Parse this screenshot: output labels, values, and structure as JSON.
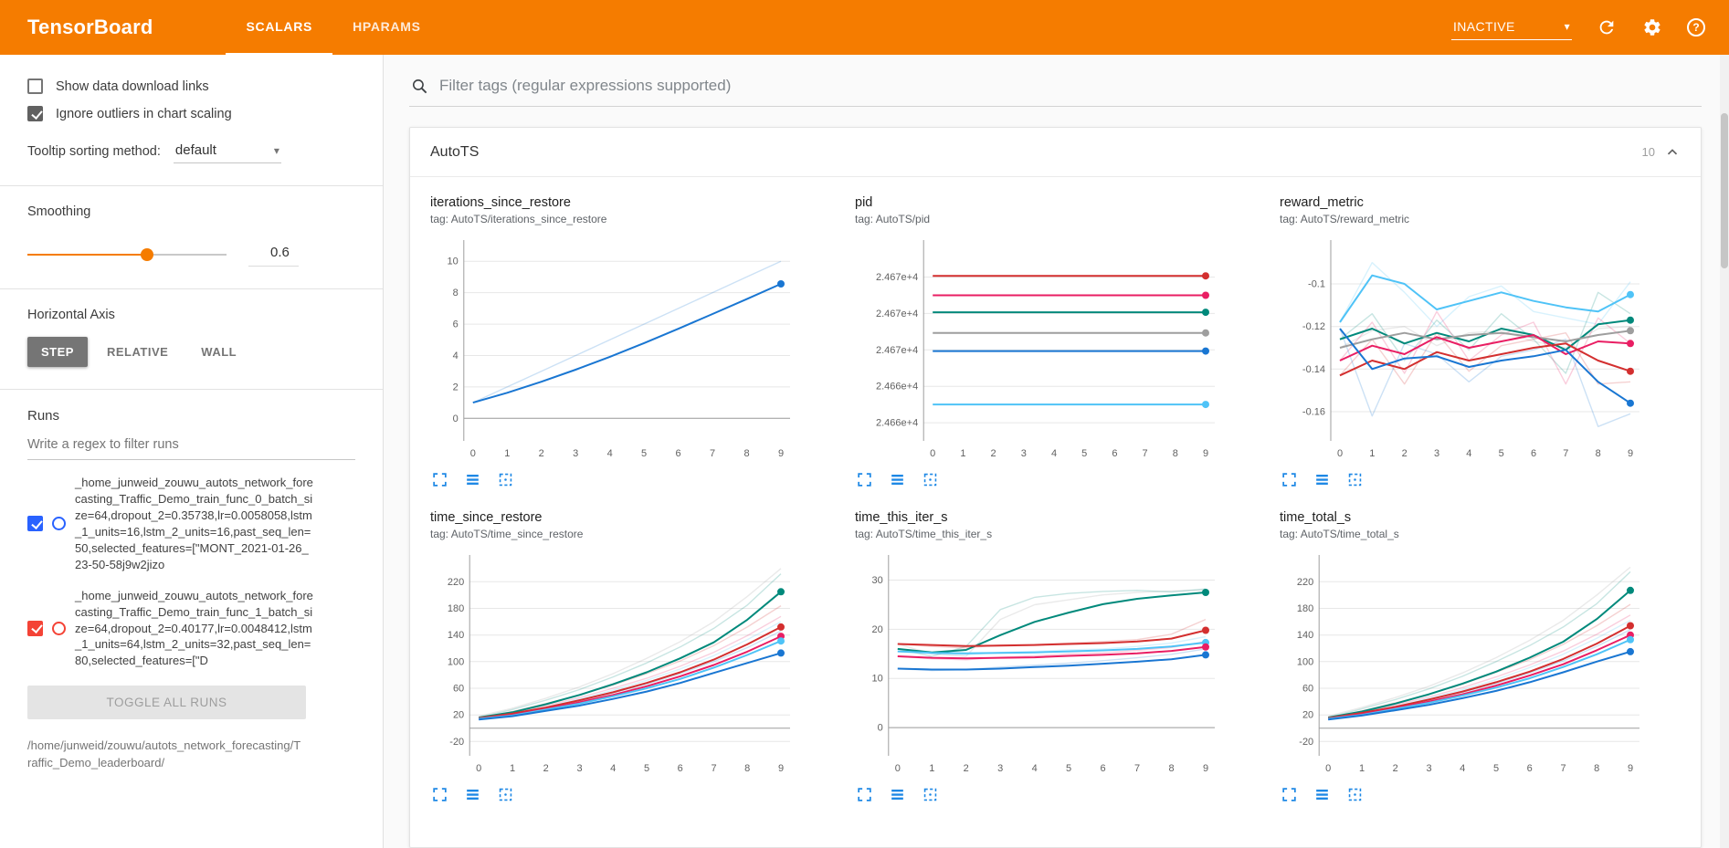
{
  "header": {
    "title": "TensorBoard",
    "tabs": [
      {
        "label": "SCALARS",
        "active": true
      },
      {
        "label": "HPARAMS",
        "active": false
      }
    ],
    "status": "INACTIVE"
  },
  "icons": {
    "caret": "▾",
    "help": "?",
    "chevron_up": "^"
  },
  "sidebar": {
    "checkboxes": [
      {
        "label": "Show data download links",
        "checked": false
      },
      {
        "label": "Ignore outliers in chart scaling",
        "checked": true
      }
    ],
    "tooltip_sort": {
      "label": "Tooltip sorting method:",
      "value": "default"
    },
    "smoothing": {
      "label": "Smoothing",
      "value": "0.6",
      "percent": 60
    },
    "axis": {
      "label": "Horizontal Axis",
      "options": [
        {
          "label": "STEP",
          "active": true
        },
        {
          "label": "RELATIVE",
          "active": false
        },
        {
          "label": "WALL",
          "active": false
        }
      ]
    },
    "runs": {
      "label": "Runs",
      "filter_placeholder": "Write a regex to filter runs",
      "items": [
        {
          "name": "_home_junweid_zouwu_autots_network_forecasting_Traffic_Demo_train_func_0_batch_size=64,dropout_2=0.35738,lr=0.0058058,lstm_1_units=16,lstm_2_units=16,past_seq_len=50,selected_features=[\"MONT_2021-01-26_23-50-58j9w2jizo",
          "checked": true,
          "color": "#2962ff"
        },
        {
          "name": "_home_junweid_zouwu_autots_network_forecasting_Traffic_Demo_train_func_1_batch_size=64,dropout_2=0.40177,lr=0.0048412,lstm_1_units=64,lstm_2_units=32,past_seq_len=80,selected_features=[\"D",
          "checked": true,
          "color": "#f44336"
        }
      ],
      "toggle_all_label": "TOGGLE ALL RUNS",
      "path": "/home/junweid/zouwu/autots_network_forecasting/Traffic_Demo_leaderboard/"
    }
  },
  "main": {
    "filter_placeholder": "Filter tags (regular expressions supported)",
    "section": {
      "title": "AutoTS",
      "count": "10"
    }
  },
  "chart_data": [
    {
      "type": "line",
      "title": "iterations_since_restore",
      "tag": "tag: AutoTS/iterations_since_restore",
      "x": [
        0,
        1,
        2,
        3,
        4,
        5,
        6,
        7,
        8,
        9
      ],
      "ylim": [
        -1.2,
        11
      ],
      "yticks": [
        0,
        2,
        4,
        6,
        8,
        10
      ],
      "ytick_labels": [
        "0",
        "2",
        "4",
        "6",
        "8",
        "10"
      ],
      "zeroline": true,
      "series": [
        {
          "color": "#1976d2",
          "faded": true,
          "values": [
            1,
            2,
            3,
            4,
            5,
            6,
            7,
            8,
            9,
            10
          ]
        },
        {
          "color": "#1976d2",
          "values": [
            1,
            1.63,
            2.33,
            3.1,
            3.92,
            4.79,
            5.7,
            6.64,
            7.59,
            8.56
          ]
        }
      ]
    },
    {
      "type": "line",
      "title": "pid",
      "tag": "tag: AutoTS/pid",
      "x": [
        0,
        1,
        2,
        3,
        4,
        5,
        6,
        7,
        8,
        9
      ],
      "ylim": [
        24658.8,
        24674.6
      ],
      "yticks": [
        24660,
        24663,
        24666,
        24669,
        24672
      ],
      "ytick_labels": [
        "2.466e+4",
        "2.466e+4",
        "2.467e+4",
        "2.467e+4",
        "2.467e+4"
      ],
      "zeroline": false,
      "series": [
        {
          "color": "#d32f2f",
          "const": 24672.1
        },
        {
          "color": "#e91e63",
          "const": 24670.5
        },
        {
          "color": "#00897b",
          "const": 24669.1
        },
        {
          "color": "#9e9e9e",
          "const": 24667.4
        },
        {
          "color": "#1976d2",
          "const": 24665.9
        },
        {
          "color": "#4fc3f7",
          "const": 24661.5
        }
      ]
    },
    {
      "type": "line",
      "title": "reward_metric",
      "tag": "tag: AutoTS/reward_metric",
      "x": [
        0,
        1,
        2,
        3,
        4,
        5,
        6,
        7,
        8,
        9
      ],
      "ylim": [
        -0.172,
        -0.082
      ],
      "yticks": [
        -0.16,
        -0.14,
        -0.12,
        -0.1
      ],
      "ytick_labels": [
        "-0.16",
        "-0.14",
        "-0.12",
        "-0.1"
      ],
      "zeroline": false,
      "series": [
        {
          "color": "#4fc3f7",
          "faded": true,
          "values": [
            -0.118,
            -0.09,
            -0.104,
            -0.12,
            -0.106,
            -0.101,
            -0.113,
            -0.116,
            -0.119,
            -0.099
          ]
        },
        {
          "color": "#00897b",
          "faded": true,
          "values": [
            -0.126,
            -0.114,
            -0.136,
            -0.117,
            -0.131,
            -0.114,
            -0.126,
            -0.142,
            -0.104,
            -0.114
          ]
        },
        {
          "color": "#9e9e9e",
          "faded": true,
          "values": [
            -0.13,
            -0.122,
            -0.12,
            -0.129,
            -0.123,
            -0.122,
            -0.127,
            -0.13,
            -0.121,
            -0.12
          ]
        },
        {
          "color": "#e91e63",
          "faded": true,
          "values": [
            -0.136,
            -0.118,
            -0.142,
            -0.113,
            -0.136,
            -0.124,
            -0.118,
            -0.147,
            -0.116,
            -0.128
          ]
        },
        {
          "color": "#d32f2f",
          "faded": true,
          "values": [
            -0.143,
            -0.126,
            -0.147,
            -0.123,
            -0.141,
            -0.129,
            -0.126,
            -0.123,
            -0.147,
            -0.146
          ]
        },
        {
          "color": "#1976d2",
          "faded": true,
          "values": [
            -0.121,
            -0.162,
            -0.128,
            -0.133,
            -0.146,
            -0.134,
            -0.131,
            -0.126,
            -0.167,
            -0.161
          ]
        },
        {
          "color": "#4fc3f7",
          "values": [
            -0.118,
            -0.096,
            -0.1,
            -0.112,
            -0.108,
            -0.104,
            -0.108,
            -0.111,
            -0.113,
            -0.105
          ]
        },
        {
          "color": "#00897b",
          "values": [
            -0.126,
            -0.121,
            -0.128,
            -0.123,
            -0.127,
            -0.121,
            -0.124,
            -0.131,
            -0.119,
            -0.117
          ]
        },
        {
          "color": "#9e9e9e",
          "values": [
            -0.13,
            -0.126,
            -0.123,
            -0.126,
            -0.124,
            -0.123,
            -0.125,
            -0.127,
            -0.124,
            -0.122
          ]
        },
        {
          "color": "#e91e63",
          "values": [
            -0.136,
            -0.129,
            -0.133,
            -0.125,
            -0.13,
            -0.127,
            -0.124,
            -0.133,
            -0.127,
            -0.128
          ]
        },
        {
          "color": "#d32f2f",
          "values": [
            -0.143,
            -0.136,
            -0.14,
            -0.132,
            -0.136,
            -0.133,
            -0.13,
            -0.128,
            -0.136,
            -0.141
          ]
        },
        {
          "color": "#1976d2",
          "values": [
            -0.121,
            -0.14,
            -0.135,
            -0.134,
            -0.139,
            -0.136,
            -0.134,
            -0.131,
            -0.146,
            -0.156
          ]
        }
      ]
    },
    {
      "type": "line",
      "title": "time_since_restore",
      "tag": "tag: AutoTS/time_since_restore",
      "x": [
        0,
        1,
        2,
        3,
        4,
        5,
        6,
        7,
        8,
        9
      ],
      "ylim": [
        -36,
        252
      ],
      "yticks": [
        -20,
        20,
        60,
        100,
        140,
        180,
        220
      ],
      "ytick_labels": [
        "-20",
        "20",
        "60",
        "100",
        "140",
        "180",
        "220"
      ],
      "zeroline": true,
      "series": [
        {
          "color": "#9e9e9e",
          "faded": true,
          "values": [
            18,
            30,
            45,
            62,
            82,
            105,
            130,
            160,
            198,
            240
          ]
        },
        {
          "color": "#00897b",
          "faded": true,
          "values": [
            16,
            28,
            42,
            58,
            77,
            98,
            122,
            150,
            185,
            232
          ]
        },
        {
          "color": "#d32f2f",
          "faded": true,
          "values": [
            15,
            25,
            37,
            50,
            65,
            82,
            101,
            124,
            152,
            184
          ]
        },
        {
          "color": "#e91e63",
          "faded": true,
          "values": [
            14,
            23,
            34,
            46,
            60,
            75,
            93,
            114,
            139,
            168
          ]
        },
        {
          "color": "#4fc3f7",
          "faded": true,
          "values": [
            14,
            22,
            32,
            44,
            57,
            72,
            89,
            109,
            133,
            160
          ]
        },
        {
          "color": "#1976d2",
          "faded": true,
          "values": [
            13,
            21,
            30,
            41,
            53,
            66,
            82,
            100,
            121,
            146
          ]
        },
        {
          "color": "#00897b",
          "values": [
            16,
            24,
            36,
            50,
            66,
            84,
            105,
            129,
            163,
            205
          ]
        },
        {
          "color": "#d32f2f",
          "values": [
            15,
            22,
            31,
            42,
            54,
            68,
            84,
            103,
            126,
            152
          ]
        },
        {
          "color": "#e91e63",
          "values": [
            14,
            20,
            29,
            39,
            50,
            63,
            78,
            95,
            115,
            138
          ]
        },
        {
          "color": "#4fc3f7",
          "values": [
            14,
            19,
            28,
            37,
            48,
            60,
            74,
            91,
            110,
            131
          ]
        },
        {
          "color": "#1976d2",
          "values": [
            13,
            18,
            26,
            34,
            44,
            55,
            68,
            83,
            98,
            113
          ]
        }
      ]
    },
    {
      "type": "line",
      "title": "time_this_iter_s",
      "tag": "tag: AutoTS/time_this_iter_s",
      "x": [
        0,
        1,
        2,
        3,
        4,
        5,
        6,
        7,
        8,
        9
      ],
      "ylim": [
        -5,
        34
      ],
      "yticks": [
        0,
        10,
        20,
        30
      ],
      "ytick_labels": [
        "0",
        "10",
        "20",
        "30"
      ],
      "zeroline": true,
      "series": [
        {
          "color": "#9e9e9e",
          "faded": true,
          "values": [
            17,
            15,
            14.5,
            22,
            25,
            26,
            27,
            27.5,
            27.8,
            28
          ]
        },
        {
          "color": "#00897b",
          "faded": true,
          "values": [
            16,
            14.5,
            16.5,
            24,
            26.5,
            27.3,
            27.7,
            27.9,
            27.6,
            28.2
          ]
        },
        {
          "color": "#d32f2f",
          "faded": true,
          "values": [
            17,
            16.5,
            16.2,
            16.8,
            16.9,
            17.2,
            17.5,
            17.9,
            19,
            22
          ]
        },
        {
          "color": "#e91e63",
          "faded": true,
          "values": [
            14.5,
            14,
            13.8,
            14.3,
            14.6,
            15,
            15.2,
            15.7,
            16.3,
            17.5
          ]
        },
        {
          "color": "#4fc3f7",
          "faded": true,
          "values": [
            15.5,
            15,
            14.8,
            15.3,
            15.5,
            15.8,
            16,
            16.5,
            17.2,
            18.5
          ]
        },
        {
          "color": "#1976d2",
          "faded": true,
          "values": [
            12,
            11.6,
            11.8,
            12.3,
            12.7,
            13.1,
            13.6,
            14.2,
            14.9,
            16
          ]
        },
        {
          "color": "#00897b",
          "values": [
            16,
            15.3,
            15.8,
            18.8,
            21.5,
            23.4,
            25.1,
            26.2,
            26.9,
            27.5
          ]
        },
        {
          "color": "#d32f2f",
          "values": [
            17,
            16.8,
            16.6,
            16.7,
            16.8,
            17,
            17.2,
            17.5,
            18.1,
            19.8
          ]
        },
        {
          "color": "#4fc3f7",
          "values": [
            15.5,
            15.2,
            15.1,
            15.2,
            15.3,
            15.5,
            15.7,
            16,
            16.5,
            17.3
          ]
        },
        {
          "color": "#e91e63",
          "values": [
            14.5,
            14.2,
            14.1,
            14.2,
            14.3,
            14.6,
            14.8,
            15.1,
            15.6,
            16.4
          ]
        },
        {
          "color": "#1976d2",
          "values": [
            12,
            11.8,
            11.8,
            12,
            12.3,
            12.6,
            13,
            13.4,
            13.9,
            14.8
          ]
        }
      ]
    },
    {
      "type": "line",
      "title": "time_total_s",
      "tag": "tag: AutoTS/time_total_s",
      "x": [
        0,
        1,
        2,
        3,
        4,
        5,
        6,
        7,
        8,
        9
      ],
      "ylim": [
        -36,
        252
      ],
      "yticks": [
        -20,
        20,
        60,
        100,
        140,
        180,
        220
      ],
      "ytick_labels": [
        "-20",
        "20",
        "60",
        "100",
        "140",
        "180",
        "220"
      ],
      "zeroline": true,
      "series": [
        {
          "color": "#9e9e9e",
          "faded": true,
          "values": [
            18,
            31,
            46,
            63,
            83,
            106,
            132,
            162,
            200,
            242
          ]
        },
        {
          "color": "#00897b",
          "faded": true,
          "values": [
            16,
            29,
            43,
            59,
            78,
            100,
            124,
            152,
            187,
            235
          ]
        },
        {
          "color": "#d32f2f",
          "faded": true,
          "values": [
            15,
            26,
            38,
            51,
            66,
            84,
            103,
            126,
            154,
            186
          ]
        },
        {
          "color": "#e91e63",
          "faded": true,
          "values": [
            14,
            24,
            35,
            47,
            61,
            77,
            95,
            116,
            141,
            170
          ]
        },
        {
          "color": "#4fc3f7",
          "faded": true,
          "values": [
            14,
            23,
            33,
            45,
            58,
            73,
            91,
            111,
            135,
            162
          ]
        },
        {
          "color": "#1976d2",
          "faded": true,
          "values": [
            13,
            22,
            31,
            42,
            54,
            67,
            83,
            101,
            123,
            148
          ]
        },
        {
          "color": "#00897b",
          "values": [
            16,
            25,
            37,
            51,
            67,
            85,
            106,
            130,
            164,
            207
          ]
        },
        {
          "color": "#d32f2f",
          "values": [
            15,
            23,
            32,
            43,
            55,
            69,
            85,
            104,
            127,
            154
          ]
        },
        {
          "color": "#e91e63",
          "values": [
            14,
            21,
            30,
            40,
            51,
            64,
            79,
            96,
            117,
            140
          ]
        },
        {
          "color": "#4fc3f7",
          "values": [
            14,
            20,
            29,
            38,
            49,
            61,
            75,
            92,
            111,
            133
          ]
        },
        {
          "color": "#1976d2",
          "values": [
            13,
            19,
            27,
            35,
            45,
            56,
            69,
            84,
            100,
            115
          ]
        }
      ]
    }
  ]
}
